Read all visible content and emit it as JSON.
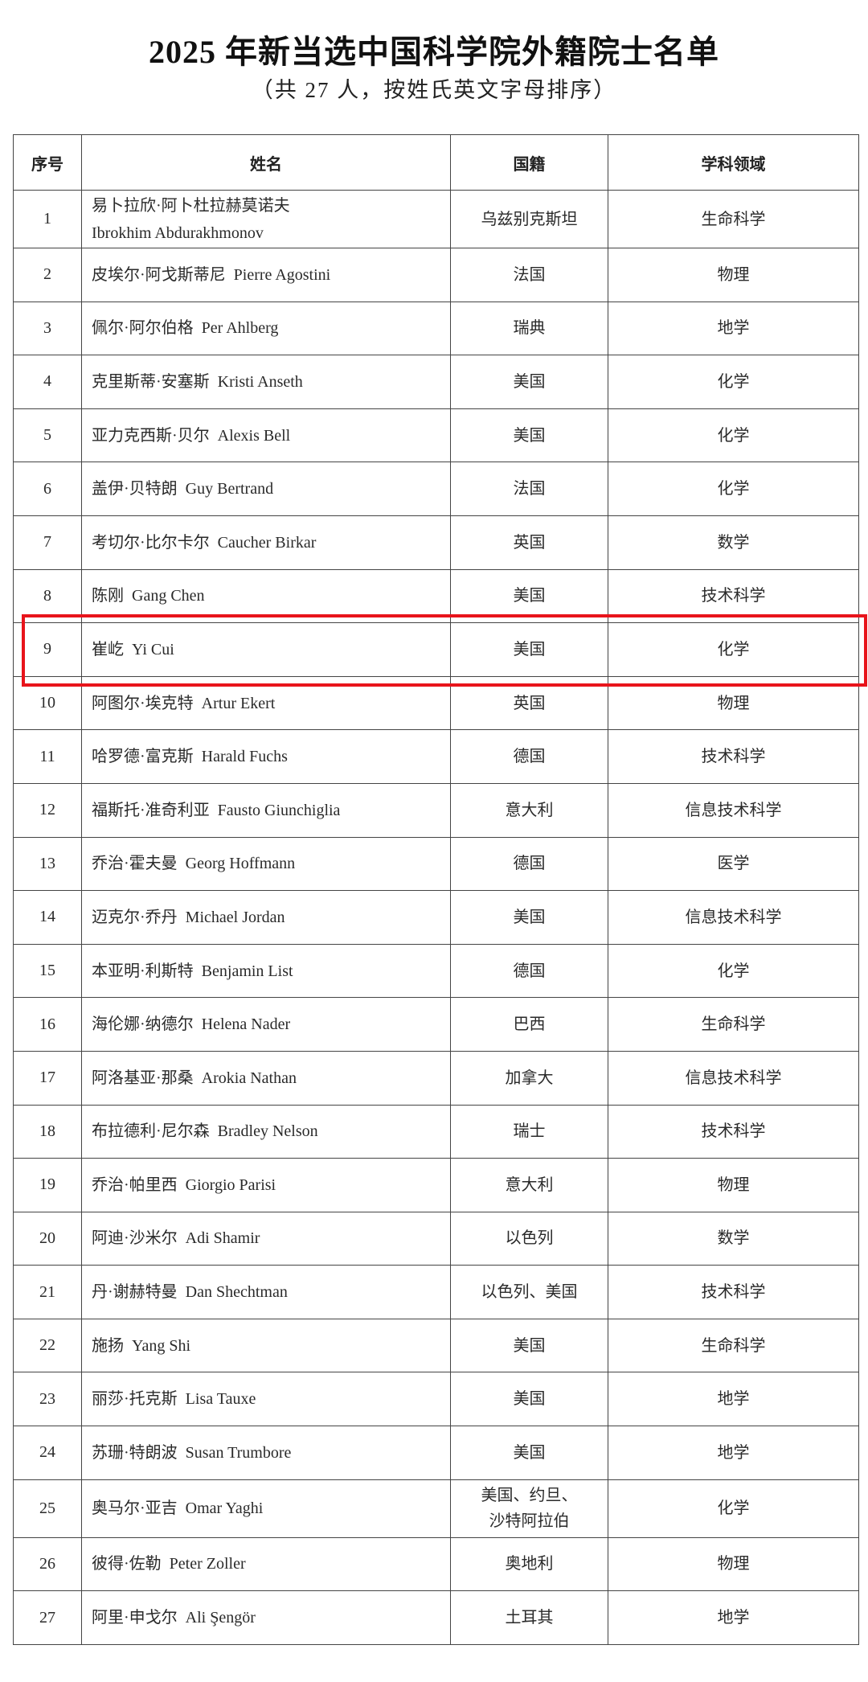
{
  "title": "2025 年新当选中国科学院外籍院士名单",
  "subtitle": "（共 27 人，按姓氏英文字母排序）",
  "highlight_color": "#e8141b",
  "highlighted_row": 9,
  "table": {
    "headers": [
      "序号",
      "姓名",
      "国籍",
      "学科领域"
    ],
    "rows": [
      {
        "no": "1",
        "name_cn": "易卜拉欣·阿卜杜拉赫莫诺夫",
        "name_en": "Ibrokhim Abdurakhmonov",
        "nationality": "乌兹别克斯坦",
        "field": "生命科学"
      },
      {
        "no": "2",
        "name_cn": "皮埃尔·阿戈斯蒂尼",
        "name_en": "Pierre Agostini",
        "nationality": "法国",
        "field": "物理"
      },
      {
        "no": "3",
        "name_cn": "佩尔·阿尔伯格",
        "name_en": "Per Ahlberg",
        "nationality": "瑞典",
        "field": "地学"
      },
      {
        "no": "4",
        "name_cn": "克里斯蒂·安塞斯",
        "name_en": "Kristi Anseth",
        "nationality": "美国",
        "field": "化学"
      },
      {
        "no": "5",
        "name_cn": "亚力克西斯·贝尔",
        "name_en": "Alexis Bell",
        "nationality": "美国",
        "field": "化学"
      },
      {
        "no": "6",
        "name_cn": "盖伊·贝特朗",
        "name_en": "Guy Bertrand",
        "nationality": "法国",
        "field": "化学"
      },
      {
        "no": "7",
        "name_cn": "考切尔·比尔卡尔",
        "name_en": "Caucher Birkar",
        "nationality": "英国",
        "field": "数学"
      },
      {
        "no": "8",
        "name_cn": "陈刚",
        "name_en": "Gang Chen",
        "nationality": "美国",
        "field": "技术科学"
      },
      {
        "no": "9",
        "name_cn": "崔屹",
        "name_en": "Yi Cui",
        "nationality": "美国",
        "field": "化学"
      },
      {
        "no": "10",
        "name_cn": "阿图尔·埃克特",
        "name_en": "Artur Ekert",
        "nationality": "英国",
        "field": "物理"
      },
      {
        "no": "11",
        "name_cn": "哈罗德·富克斯",
        "name_en": "Harald Fuchs",
        "nationality": "德国",
        "field": "技术科学"
      },
      {
        "no": "12",
        "name_cn": "福斯托·准奇利亚",
        "name_en": "Fausto Giunchiglia",
        "nationality": "意大利",
        "field": "信息技术科学"
      },
      {
        "no": "13",
        "name_cn": "乔治·霍夫曼",
        "name_en": "Georg Hoffmann",
        "nationality": "德国",
        "field": "医学"
      },
      {
        "no": "14",
        "name_cn": "迈克尔·乔丹",
        "name_en": "Michael Jordan",
        "nationality": "美国",
        "field": "信息技术科学"
      },
      {
        "no": "15",
        "name_cn": "本亚明·利斯特",
        "name_en": "Benjamin List",
        "nationality": "德国",
        "field": "化学"
      },
      {
        "no": "16",
        "name_cn": "海伦娜·纳德尔",
        "name_en": "Helena Nader",
        "nationality": "巴西",
        "field": "生命科学"
      },
      {
        "no": "17",
        "name_cn": "阿洛基亚·那桑",
        "name_en": "Arokia Nathan",
        "nationality": "加拿大",
        "field": "信息技术科学"
      },
      {
        "no": "18",
        "name_cn": "布拉德利·尼尔森",
        "name_en": "Bradley Nelson",
        "nationality": "瑞士",
        "field": "技术科学"
      },
      {
        "no": "19",
        "name_cn": "乔治·帕里西",
        "name_en": "Giorgio Parisi",
        "nationality": "意大利",
        "field": "物理"
      },
      {
        "no": "20",
        "name_cn": "阿迪·沙米尔",
        "name_en": "Adi Shamir",
        "nationality": "以色列",
        "field": "数学"
      },
      {
        "no": "21",
        "name_cn": "丹·谢赫特曼",
        "name_en": "Dan Shechtman",
        "nationality": "以色列、美国",
        "field": "技术科学"
      },
      {
        "no": "22",
        "name_cn": "施扬",
        "name_en": "Yang Shi",
        "nationality": "美国",
        "field": "生命科学"
      },
      {
        "no": "23",
        "name_cn": "丽莎·托克斯",
        "name_en": "Lisa Tauxe",
        "nationality": "美国",
        "field": "地学"
      },
      {
        "no": "24",
        "name_cn": "苏珊·特朗波",
        "name_en": "Susan Trumbore",
        "nationality": "美国",
        "field": "地学"
      },
      {
        "no": "25",
        "name_cn": "奥马尔·亚吉",
        "name_en": "Omar Yaghi",
        "nationality": "美国、约旦、\n沙特阿拉伯",
        "field": "化学"
      },
      {
        "no": "26",
        "name_cn": "彼得·佐勒",
        "name_en": "Peter Zoller",
        "nationality": "奥地利",
        "field": "物理"
      },
      {
        "no": "27",
        "name_cn": "阿里·申戈尔",
        "name_en": "Ali Şengör",
        "nationality": "土耳其",
        "field": "地学"
      }
    ]
  }
}
